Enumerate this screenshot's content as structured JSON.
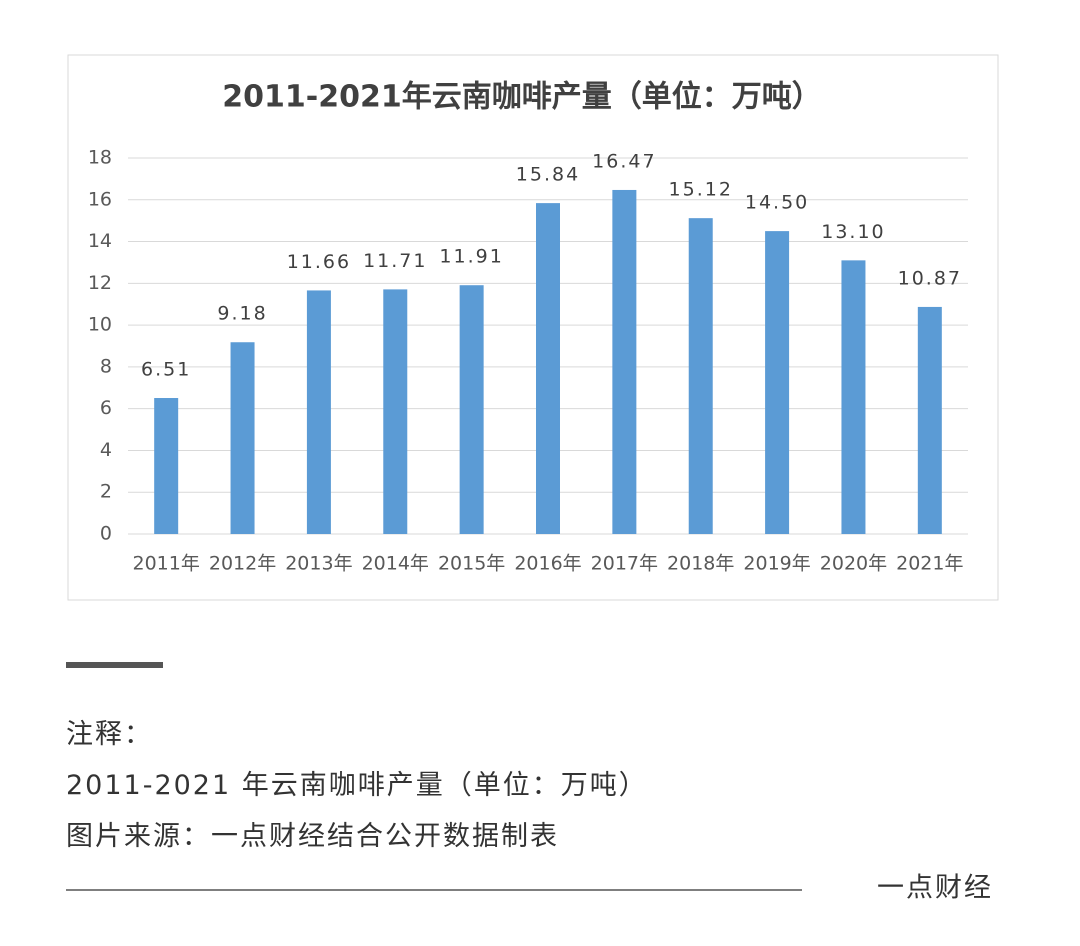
{
  "chart_data": {
    "type": "bar",
    "title": "2011-2021年云南咖啡产量（单位：万吨）",
    "categories": [
      "2011年",
      "2012年",
      "2013年",
      "2014年",
      "2015年",
      "2016年",
      "2017年",
      "2018年",
      "2019年",
      "2020年",
      "2021年"
    ],
    "values": [
      6.51,
      9.18,
      11.66,
      11.71,
      11.91,
      15.84,
      16.47,
      15.12,
      14.5,
      13.1,
      10.87
    ],
    "value_labels": [
      "6.51",
      "9.18",
      "11.66",
      "11.71",
      "11.91",
      "15.84",
      "16.47",
      "15.12",
      "14.50",
      "13.10",
      "10.87"
    ],
    "color": "#5b9bd5",
    "ylim": [
      0,
      18
    ],
    "yticks": [
      0,
      2,
      4,
      6,
      8,
      10,
      12,
      14,
      16,
      18
    ],
    "grid": true
  },
  "notes": {
    "heading": "注释：",
    "lines": [
      "2011-2021 年云南咖啡产量（单位：万吨）",
      "图片来源：一点财经结合公开数据制表"
    ]
  },
  "footer": {
    "brand": "一点财经"
  }
}
